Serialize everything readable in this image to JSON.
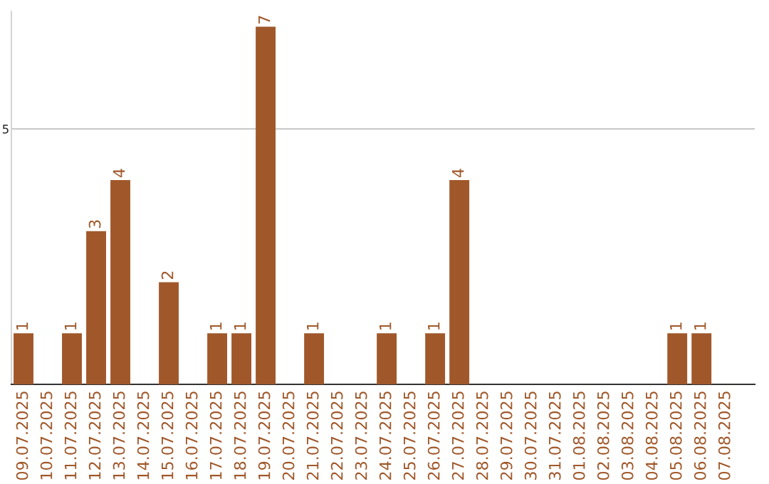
{
  "chart_data": {
    "type": "bar",
    "categories": [
      "09.07.2025",
      "10.07.2025",
      "11.07.2025",
      "12.07.2025",
      "13.07.2025",
      "14.07.2025",
      "15.07.2025",
      "16.07.2025",
      "17.07.2025",
      "18.07.2025",
      "19.07.2025",
      "20.07.2025",
      "21.07.2025",
      "22.07.2025",
      "23.07.2025",
      "24.07.2025",
      "25.07.2025",
      "26.07.2025",
      "27.07.2025",
      "28.07.2025",
      "29.07.2025",
      "30.07.2025",
      "31.07.2025",
      "01.08.2025",
      "02.08.2025",
      "03.08.2025",
      "04.08.2025",
      "05.08.2025",
      "06.08.2025",
      "07.08.2025"
    ],
    "values": [
      1,
      0,
      1,
      3,
      4,
      0,
      2,
      0,
      1,
      1,
      7,
      0,
      1,
      0,
      0,
      1,
      0,
      1,
      4,
      0,
      0,
      0,
      0,
      0,
      0,
      0,
      0,
      1,
      1,
      0
    ],
    "value_labels": [
      "1",
      null,
      "1",
      "3",
      "4",
      null,
      "2",
      null,
      "1",
      "1",
      "7",
      null,
      "1",
      null,
      null,
      "1",
      null,
      "1",
      "4",
      null,
      null,
      null,
      null,
      null,
      null,
      null,
      null,
      "1",
      "1",
      null
    ],
    "color": "#a0582a",
    "ylim": [
      0,
      7.3
    ],
    "yticks": [
      {
        "value": 0,
        "label": null
      },
      5
    ],
    "grid": "y",
    "legend": false
  }
}
